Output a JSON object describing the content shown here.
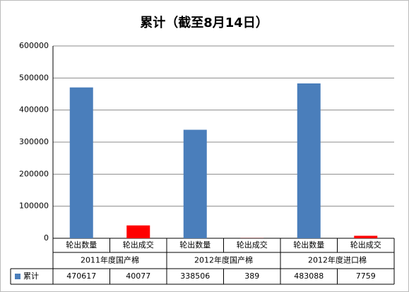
{
  "chart_data": {
    "type": "bar",
    "title": "累计（截至8月14日）",
    "categories": [
      "轮出数量",
      "轮出成交",
      "轮出数量",
      "轮出成交",
      "轮出数量",
      "轮出成交"
    ],
    "groups": [
      "2011年度国产棉",
      "2012年度国产棉",
      "2012年度进口棉"
    ],
    "series": [
      {
        "name": "累计",
        "color": "#4a7ebb",
        "point_colors": [
          "#4a7ebb",
          "#ff0000",
          "#4a7ebb",
          "#ff0000",
          "#4a7ebb",
          "#ff0000"
        ],
        "values": [
          470617,
          40077,
          338506,
          389,
          483088,
          7759
        ]
      }
    ],
    "ylim": [
      0,
      600000
    ],
    "yticks": [
      0,
      100000,
      200000,
      300000,
      400000,
      500000,
      600000
    ],
    "grid": true
  }
}
